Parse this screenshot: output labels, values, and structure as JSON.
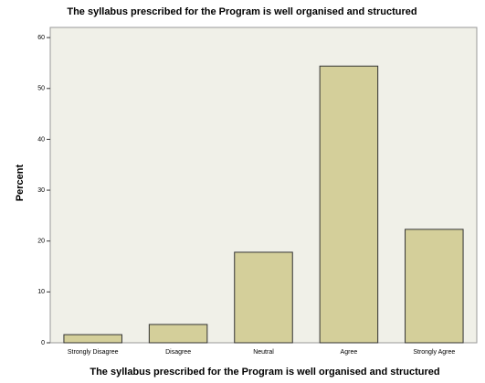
{
  "chart_data": {
    "type": "bar",
    "title": "The syllabus prescribed for the Program is well organised and structured",
    "x_label": "The syllabus prescribed for the Program is well organised and structured",
    "y_label": "Percent",
    "categories": [
      "Strongly Disagree",
      "Disagree",
      "Neutral",
      "Agree",
      "Strongly Agree"
    ],
    "values": [
      1.6,
      3.6,
      17.8,
      54.4,
      22.3
    ],
    "color": "#d4cf9a",
    "ylim": [
      0,
      62
    ],
    "yticks": [
      0,
      10,
      20,
      30,
      40,
      50,
      60
    ],
    "grid": false
  }
}
